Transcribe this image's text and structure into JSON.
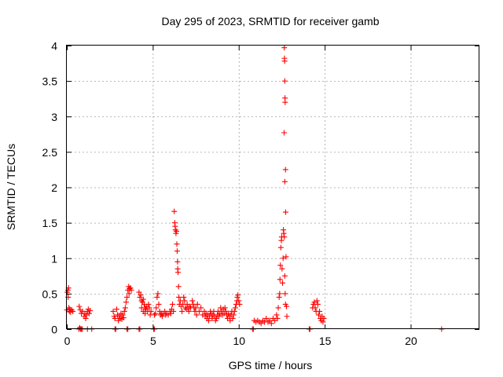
{
  "chart_data": {
    "type": "scatter",
    "title": "Day 295 of 2023, SRMTID for receiver gamb",
    "xlabel": "GPS time / hours",
    "ylabel": "SRMTID / TECUs",
    "xlim": [
      0,
      24
    ],
    "ylim": [
      0,
      4
    ],
    "x_ticks": [
      0,
      5,
      10,
      15,
      20
    ],
    "y_ticks": [
      0,
      0.5,
      1,
      1.5,
      2,
      2.5,
      3,
      3.5,
      4
    ],
    "x_tick_labels": [
      "0",
      "5",
      "10",
      "15",
      "20"
    ],
    "y_tick_labels": [
      "0",
      "0.5",
      "1",
      "1.5",
      "2",
      "2.5",
      "3",
      "3.5",
      "4"
    ],
    "grid": true,
    "marker": "plus",
    "color": "#ff0000",
    "series": [
      {
        "values": [
          [
            0.0,
            0.27
          ],
          [
            0.03,
            0.52
          ],
          [
            0.06,
            0.55
          ],
          [
            0.08,
            0.45
          ],
          [
            0.1,
            0.58
          ],
          [
            0.12,
            0.3
          ],
          [
            0.15,
            0.25
          ],
          [
            0.18,
            0.28
          ],
          [
            0.22,
            0.24
          ],
          [
            0.28,
            0.27
          ],
          [
            0.35,
            0.25
          ],
          [
            0.7,
            0.0
          ],
          [
            0.75,
            0.02
          ],
          [
            0.8,
            0.0
          ],
          [
            0.85,
            0.0
          ],
          [
            0.9,
            0.0
          ],
          [
            0.72,
            0.32
          ],
          [
            0.78,
            0.27
          ],
          [
            0.85,
            0.22
          ],
          [
            0.92,
            0.25
          ],
          [
            1.0,
            0.18
          ],
          [
            1.05,
            0.22
          ],
          [
            1.1,
            0.15
          ],
          [
            1.15,
            0.2
          ],
          [
            1.2,
            0.25
          ],
          [
            1.25,
            0.28
          ],
          [
            1.3,
            0.22
          ],
          [
            1.35,
            0.26
          ],
          [
            1.2,
            0.0
          ],
          [
            1.45,
            0.0
          ],
          [
            2.8,
            0.0
          ],
          [
            2.85,
            0.0
          ],
          [
            2.7,
            0.25
          ],
          [
            2.75,
            0.18
          ],
          [
            2.8,
            0.15
          ],
          [
            2.9,
            0.28
          ],
          [
            2.95,
            0.2
          ],
          [
            3.0,
            0.12
          ],
          [
            3.05,
            0.18
          ],
          [
            3.1,
            0.15
          ],
          [
            3.15,
            0.22
          ],
          [
            3.2,
            0.14
          ],
          [
            3.25,
            0.2
          ],
          [
            3.3,
            0.16
          ],
          [
            3.35,
            0.25
          ],
          [
            3.4,
            0.3
          ],
          [
            3.45,
            0.38
          ],
          [
            3.5,
            0.45
          ],
          [
            3.55,
            0.55
          ],
          [
            3.6,
            0.6
          ],
          [
            3.62,
            0.5
          ],
          [
            3.65,
            0.57
          ],
          [
            3.7,
            0.58
          ],
          [
            3.75,
            0.55
          ],
          [
            3.5,
            0.0
          ],
          [
            3.55,
            0.0
          ],
          [
            4.2,
            0.52
          ],
          [
            4.25,
            0.45
          ],
          [
            4.3,
            0.48
          ],
          [
            4.35,
            0.4
          ],
          [
            4.4,
            0.38
          ],
          [
            4.45,
            0.42
          ],
          [
            4.5,
            0.35
          ],
          [
            4.55,
            0.3
          ],
          [
            4.6,
            0.28
          ],
          [
            4.65,
            0.32
          ],
          [
            4.7,
            0.25
          ],
          [
            4.75,
            0.35
          ],
          [
            4.8,
            0.3
          ],
          [
            4.85,
            0.2
          ],
          [
            4.9,
            0.25
          ],
          [
            4.35,
            0.3
          ],
          [
            4.45,
            0.25
          ],
          [
            4.55,
            0.22
          ],
          [
            4.2,
            0.0
          ],
          [
            4.25,
            0.0
          ],
          [
            5.05,
            0.0
          ],
          [
            5.1,
            0.0
          ],
          [
            5.1,
            0.2
          ],
          [
            5.15,
            0.22
          ],
          [
            5.2,
            0.3
          ],
          [
            5.25,
            0.45
          ],
          [
            5.3,
            0.5
          ],
          [
            5.35,
            0.35
          ],
          [
            5.4,
            0.25
          ],
          [
            5.45,
            0.2
          ],
          [
            5.5,
            0.22
          ],
          [
            5.55,
            0.18
          ],
          [
            5.6,
            0.22
          ],
          [
            5.7,
            0.25
          ],
          [
            5.75,
            0.2
          ],
          [
            5.8,
            0.22
          ],
          [
            5.9,
            0.2
          ],
          [
            6.0,
            0.25
          ],
          [
            6.05,
            0.22
          ],
          [
            6.1,
            0.28
          ],
          [
            6.15,
            0.35
          ],
          [
            6.2,
            0.25
          ],
          [
            6.25,
            1.66
          ],
          [
            6.28,
            1.5
          ],
          [
            6.3,
            1.45
          ],
          [
            6.32,
            1.4
          ],
          [
            6.35,
            1.35
          ],
          [
            6.38,
            1.38
          ],
          [
            6.4,
            1.2
          ],
          [
            6.42,
            1.1
          ],
          [
            6.44,
            0.95
          ],
          [
            6.45,
            0.85
          ],
          [
            6.47,
            0.8
          ],
          [
            6.5,
            0.6
          ],
          [
            6.52,
            0.45
          ],
          [
            6.55,
            0.35
          ],
          [
            6.6,
            0.4
          ],
          [
            6.65,
            0.32
          ],
          [
            6.7,
            0.25
          ],
          [
            6.75,
            0.35
          ],
          [
            6.8,
            0.45
          ],
          [
            6.85,
            0.4
          ],
          [
            6.9,
            0.3
          ],
          [
            6.95,
            0.28
          ],
          [
            7.0,
            0.35
          ],
          [
            7.05,
            0.3
          ],
          [
            7.1,
            0.25
          ],
          [
            7.15,
            0.32
          ],
          [
            7.2,
            0.3
          ],
          [
            7.3,
            0.4
          ],
          [
            7.35,
            0.35
          ],
          [
            7.4,
            0.3
          ],
          [
            7.45,
            0.25
          ],
          [
            7.5,
            0.3
          ],
          [
            7.55,
            0.2
          ],
          [
            7.6,
            0.35
          ],
          [
            7.7,
            0.25
          ],
          [
            7.8,
            0.3
          ],
          [
            7.9,
            0.2
          ],
          [
            8.0,
            0.25
          ],
          [
            8.05,
            0.18
          ],
          [
            8.1,
            0.22
          ],
          [
            8.15,
            0.15
          ],
          [
            8.2,
            0.2
          ],
          [
            8.25,
            0.12
          ],
          [
            8.3,
            0.18
          ],
          [
            8.35,
            0.25
          ],
          [
            8.4,
            0.22
          ],
          [
            8.45,
            0.15
          ],
          [
            8.5,
            0.2
          ],
          [
            8.55,
            0.25
          ],
          [
            8.6,
            0.18
          ],
          [
            8.65,
            0.12
          ],
          [
            8.7,
            0.15
          ],
          [
            8.75,
            0.2
          ],
          [
            8.8,
            0.25
          ],
          [
            8.85,
            0.18
          ],
          [
            8.9,
            0.22
          ],
          [
            8.95,
            0.3
          ],
          [
            9.0,
            0.25
          ],
          [
            9.05,
            0.2
          ],
          [
            9.1,
            0.28
          ],
          [
            9.15,
            0.22
          ],
          [
            9.2,
            0.3
          ],
          [
            9.25,
            0.25
          ],
          [
            9.3,
            0.2
          ],
          [
            9.35,
            0.15
          ],
          [
            9.4,
            0.22
          ],
          [
            9.45,
            0.18
          ],
          [
            9.5,
            0.12
          ],
          [
            9.55,
            0.2
          ],
          [
            9.6,
            0.25
          ],
          [
            9.65,
            0.15
          ],
          [
            9.7,
            0.2
          ],
          [
            9.75,
            0.25
          ],
          [
            9.8,
            0.3
          ],
          [
            9.85,
            0.35
          ],
          [
            9.9,
            0.4
          ],
          [
            9.92,
            0.45
          ],
          [
            9.95,
            0.48
          ],
          [
            10.0,
            0.4
          ],
          [
            10.05,
            0.35
          ],
          [
            10.8,
            0.0
          ],
          [
            10.85,
            0.0
          ],
          [
            10.9,
            0.12
          ],
          [
            11.0,
            0.1
          ],
          [
            11.1,
            0.12
          ],
          [
            11.2,
            0.1
          ],
          [
            11.3,
            0.08
          ],
          [
            11.4,
            0.12
          ],
          [
            11.5,
            0.1
          ],
          [
            11.6,
            0.15
          ],
          [
            11.7,
            0.1
          ],
          [
            11.8,
            0.12
          ],
          [
            11.9,
            0.08
          ],
          [
            12.0,
            0.15
          ],
          [
            12.1,
            0.12
          ],
          [
            12.2,
            0.2
          ],
          [
            12.25,
            0.15
          ],
          [
            12.3,
            0.3
          ],
          [
            12.35,
            0.45
          ],
          [
            12.38,
            0.5
          ],
          [
            12.4,
            0.7
          ],
          [
            12.42,
            0.9
          ],
          [
            12.45,
            1.15
          ],
          [
            12.48,
            1.25
          ],
          [
            12.5,
            1.3
          ],
          [
            12.52,
            0.85
          ],
          [
            12.55,
            0.65
          ],
          [
            12.58,
            1.0
          ],
          [
            12.6,
            1.4
          ],
          [
            12.62,
            1.35
          ],
          [
            12.65,
            1.3
          ],
          [
            12.68,
            0.75
          ],
          [
            12.7,
            0.5
          ],
          [
            12.72,
            0.35
          ],
          [
            12.65,
            3.97
          ],
          [
            12.66,
            3.82
          ],
          [
            12.67,
            3.78
          ],
          [
            12.68,
            3.5
          ],
          [
            12.69,
            3.26
          ],
          [
            12.7,
            3.2
          ],
          [
            12.64,
            2.77
          ],
          [
            12.72,
            2.25
          ],
          [
            12.68,
            2.08
          ],
          [
            12.73,
            1.65
          ],
          [
            12.75,
            1.02
          ],
          [
            12.78,
            0.32
          ],
          [
            12.8,
            0.18
          ],
          [
            14.1,
            0.0
          ],
          [
            14.15,
            0.0
          ],
          [
            14.3,
            0.3
          ],
          [
            14.35,
            0.35
          ],
          [
            14.4,
            0.38
          ],
          [
            14.45,
            0.3
          ],
          [
            14.5,
            0.25
          ],
          [
            14.55,
            0.4
          ],
          [
            14.6,
            0.35
          ],
          [
            14.65,
            0.2
          ],
          [
            14.7,
            0.25
          ],
          [
            14.75,
            0.15
          ],
          [
            14.8,
            0.12
          ],
          [
            14.85,
            0.18
          ],
          [
            14.9,
            0.1
          ],
          [
            14.95,
            0.15
          ],
          [
            21.8,
            0.0
          ]
        ]
      }
    ]
  }
}
